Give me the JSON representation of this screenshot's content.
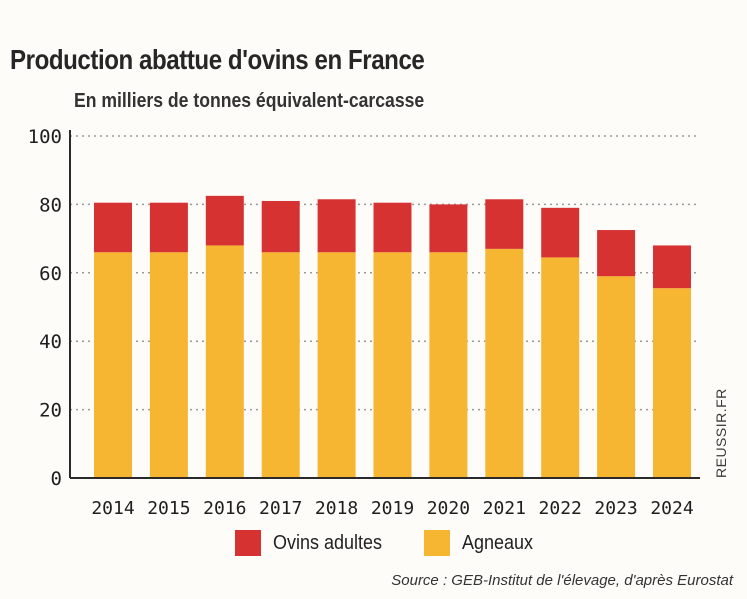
{
  "chart_data": {
    "type": "bar",
    "stacked": true,
    "title": "Production abattue d'ovins en France",
    "subtitle": "En milliers de tonnes équivalent-carcasse",
    "categories": [
      "2014",
      "2015",
      "2016",
      "2017",
      "2018",
      "2019",
      "2020",
      "2021",
      "2022",
      "2023",
      "2024"
    ],
    "series": [
      {
        "name": "Agneaux",
        "color": "#f7b631",
        "values": [
          66,
          66,
          68,
          66,
          66,
          66,
          66,
          67,
          64.5,
          59,
          55.5
        ]
      },
      {
        "name": "Ovins adultes",
        "color": "#d63231",
        "values": [
          14.5,
          14.5,
          14.5,
          15,
          15.5,
          14.5,
          14,
          14.5,
          14.5,
          13.5,
          12.5
        ]
      }
    ],
    "yticks": [
      0,
      20,
      40,
      60,
      80,
      100
    ],
    "ylim": [
      0,
      100
    ],
    "grid": true,
    "legend": [
      {
        "label": "Ovins adultes",
        "color": "#d63231"
      },
      {
        "label": "Agneaux",
        "color": "#f7b631"
      }
    ],
    "source": "Source : GEB-Institut de l'élevage, d'après Eurostat",
    "watermark": "REUSSIR.FR"
  }
}
